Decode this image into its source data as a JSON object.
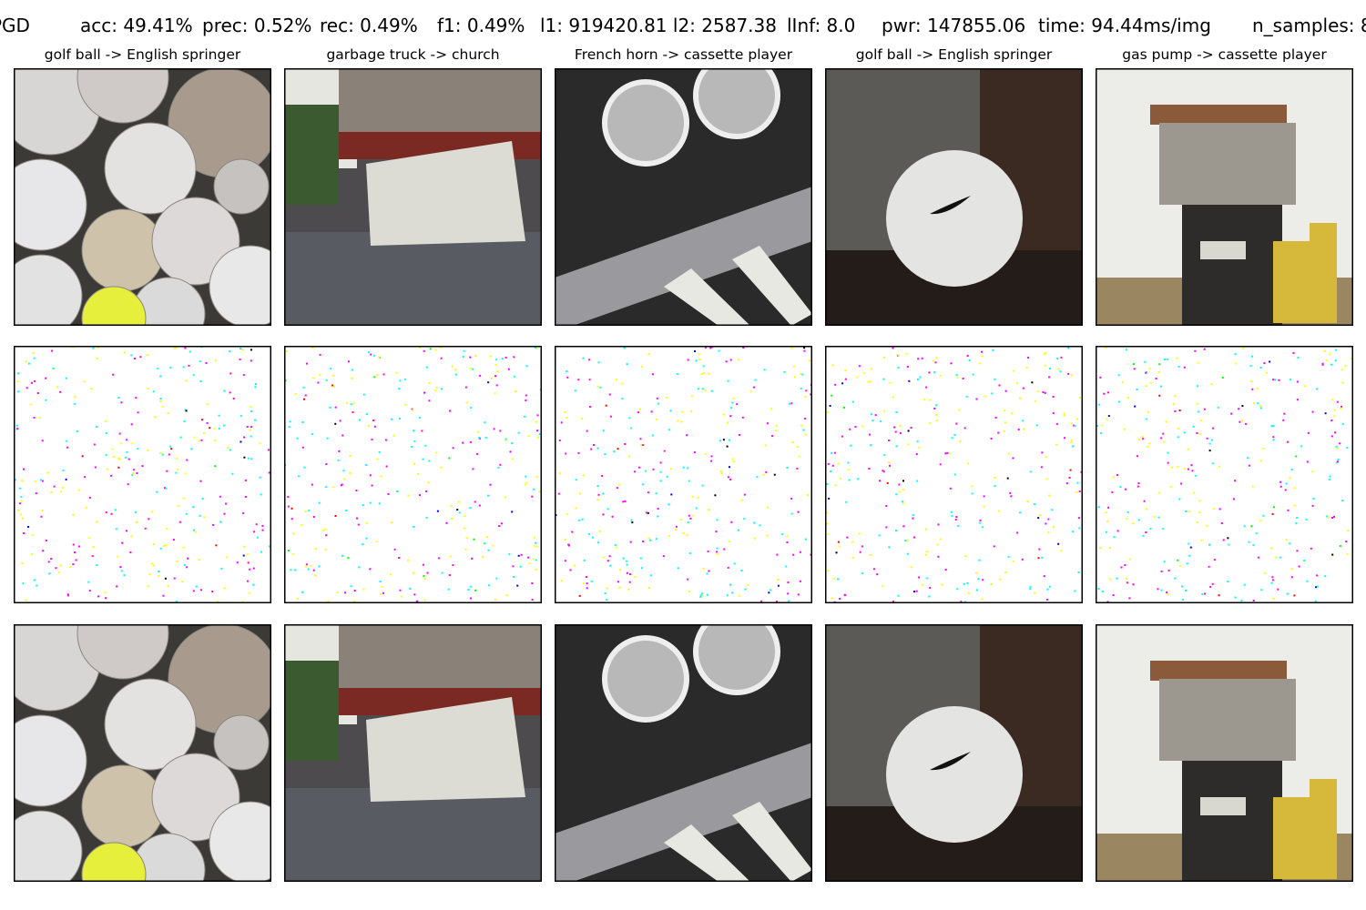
{
  "header": [
    "PGD",
    "acc: 49.41%",
    "prec: 0.52%",
    "rec: 0.49%",
    "f1: 0.49%",
    "l1: 919420.81 l2: 2587.38",
    "lInf: 8.0",
    "pwr: 147855.06",
    "time: 94.44ms/img",
    "n_samples: 8"
  ],
  "columns": [
    {
      "title": "golf ball -> English springer"
    },
    {
      "title": "garbage truck -> church"
    },
    {
      "title": "French horn -> cassette player"
    },
    {
      "title": "golf ball -> English springer"
    },
    {
      "title": "gas pump -> cassette player"
    }
  ]
}
